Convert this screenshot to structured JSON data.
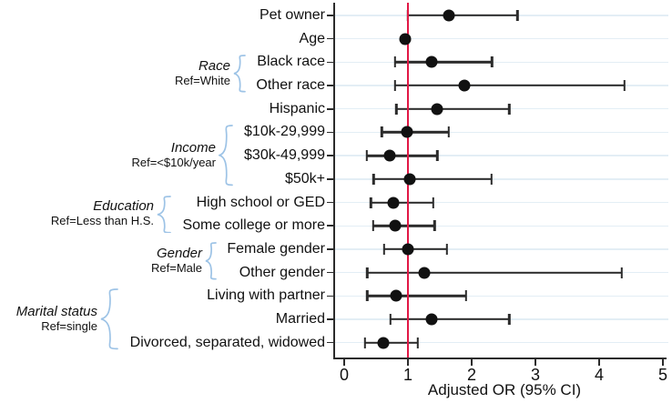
{
  "chart_data": {
    "type": "scatter",
    "subtype": "forest-plot",
    "xlabel": "Adjusted OR (95% CI)",
    "xlim": [
      0,
      5
    ],
    "x_ticks": [
      0,
      1,
      2,
      3,
      4,
      5
    ],
    "reference_line_x": 1,
    "grid": "horizontal-per-row",
    "rows": [
      {
        "label": "Pet owner",
        "or": 1.64,
        "ci_low": 1.0,
        "ci_high": 2.72
      },
      {
        "label": "Age",
        "or": 0.96,
        "ci_low": 0.93,
        "ci_high": 1.0
      },
      {
        "label": "Black race",
        "or": 1.37,
        "ci_low": 0.8,
        "ci_high": 2.32
      },
      {
        "label": "Other race",
        "or": 1.88,
        "ci_low": 0.8,
        "ci_high": 4.4
      },
      {
        "label": "Hispanic",
        "or": 1.46,
        "ci_low": 0.82,
        "ci_high": 2.59
      },
      {
        "label": "$10k-29,999",
        "or": 0.98,
        "ci_low": 0.59,
        "ci_high": 1.64
      },
      {
        "label": "$30k-49,999",
        "or": 0.72,
        "ci_low": 0.35,
        "ci_high": 1.46
      },
      {
        "label": "$50k+",
        "or": 1.03,
        "ci_low": 0.46,
        "ci_high": 2.31
      },
      {
        "label": "High school or GED",
        "or": 0.77,
        "ci_low": 0.42,
        "ci_high": 1.4
      },
      {
        "label": "Some college or more",
        "or": 0.8,
        "ci_low": 0.45,
        "ci_high": 1.42
      },
      {
        "label": "Female gender",
        "or": 1.0,
        "ci_low": 0.63,
        "ci_high": 1.61
      },
      {
        "label": "Other gender",
        "or": 1.26,
        "ci_low": 0.36,
        "ci_high": 4.35
      },
      {
        "label": "Living with partner",
        "or": 0.82,
        "ci_low": 0.36,
        "ci_high": 1.91
      },
      {
        "label": "Married",
        "or": 1.37,
        "ci_low": 0.73,
        "ci_high": 2.59
      },
      {
        "label": "Divorced, separated, widowed",
        "or": 0.62,
        "ci_low": 0.33,
        "ci_high": 1.15
      }
    ],
    "groups": [
      {
        "label": "Race",
        "ref": "Ref=White",
        "first_row": 2,
        "last_row": 3
      },
      {
        "label": "Income",
        "ref": "Ref=<$10k/year",
        "first_row": 5,
        "last_row": 7
      },
      {
        "label": "Education",
        "ref": "Ref=Less than H.S.",
        "first_row": 8,
        "last_row": 9
      },
      {
        "label": "Gender",
        "ref": "Ref=Male",
        "first_row": 10,
        "last_row": 11
      },
      {
        "label": "Marital status",
        "ref": "Ref=single",
        "first_row": 12,
        "last_row": 14
      }
    ],
    "colors": {
      "marker": "#111111",
      "ci": "#2b2b2b",
      "reference_line": "#e11845",
      "gridline": "#e3eef5",
      "brace": "#9dc3e6",
      "axis": "#2b2b2b",
      "text": "#111111"
    }
  }
}
